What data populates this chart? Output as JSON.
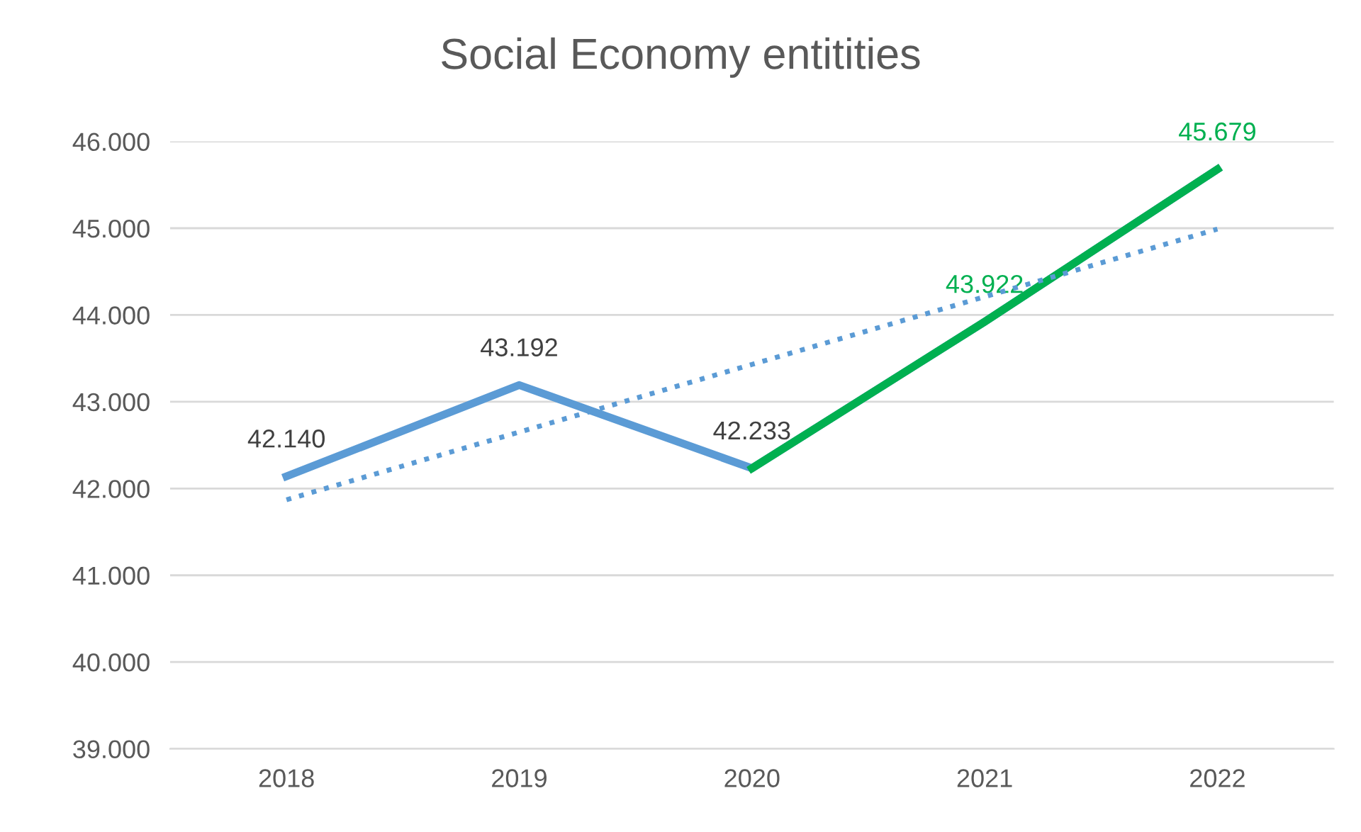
{
  "chart_data": {
    "type": "line",
    "title": "Social Economy entitities",
    "categories": [
      "2018",
      "2019",
      "2020",
      "2021",
      "2022"
    ],
    "series": [
      {
        "color": "#5b9bd5",
        "values": [
          42140,
          43192,
          42233,
          43922,
          45679
        ],
        "value_labels": [
          "42.140",
          "43.192",
          "42.233",
          null,
          null
        ],
        "line_style": "solid"
      },
      {
        "color": "#00b050",
        "values": [
          null,
          null,
          42233,
          43922,
          45679
        ],
        "value_labels": [
          null,
          null,
          null,
          "43.922",
          "45.679"
        ],
        "line_style": "solid"
      },
      {
        "color": "#5b9bd5",
        "values": [
          41870,
          42650,
          43430,
          44210,
          44990
        ],
        "line_style": "dotted"
      }
    ],
    "ylim": [
      39000,
      46000
    ],
    "yticks": [
      {
        "value": 39000,
        "label": "39.000"
      },
      {
        "value": 40000,
        "label": "40.000"
      },
      {
        "value": 41000,
        "label": "41.000"
      },
      {
        "value": 42000,
        "label": "42.000"
      },
      {
        "value": 43000,
        "label": "43.000"
      },
      {
        "value": 44000,
        "label": "44.000"
      },
      {
        "value": 45000,
        "label": "45.000"
      },
      {
        "value": 46000,
        "label": "46.000"
      }
    ],
    "grid": "y",
    "marker": "none",
    "legend": false
  }
}
